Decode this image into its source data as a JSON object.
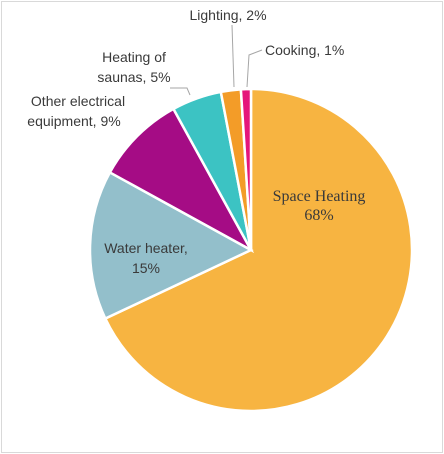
{
  "chart_data": {
    "type": "pie",
    "title": "",
    "slices": [
      {
        "label": "Space Heating",
        "pct_text": "68%",
        "value": 68,
        "color": "#F7B441"
      },
      {
        "label": "Water heater,",
        "pct_text": "15%",
        "value": 15,
        "color": "#93BFCB"
      },
      {
        "label": "Other electrical equipment, 9%",
        "value": 9,
        "color": "#A50C85"
      },
      {
        "label": "Heating of saunas, 5%",
        "value": 5,
        "color": "#3CC3C3"
      },
      {
        "label": "Lighting, 2%",
        "value": 2,
        "color": "#F39C28"
      },
      {
        "label": "Cooking, 1%",
        "value": 1,
        "color": "#E5157A"
      }
    ],
    "label_lines": {
      "space_heating": [
        "Space Heating",
        "68%"
      ],
      "water_heater": [
        "Water heater,",
        "15%"
      ],
      "other_electrical": [
        "Other electrical",
        "equipment, 9%"
      ],
      "saunas": [
        "Heating of",
        "saunas, 5%"
      ],
      "lighting": [
        "Lighting, 2%"
      ],
      "cooking": [
        "Cooking, 1%"
      ]
    },
    "legend": "none",
    "grid": false
  }
}
